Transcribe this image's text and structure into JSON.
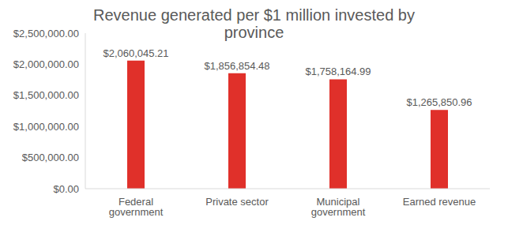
{
  "chart_data": {
    "type": "bar",
    "title": "Revenue generated per $1 million invested by province",
    "categories": [
      "Federal government",
      "Private sector",
      "Municipal government",
      "Earned revenue"
    ],
    "values": [
      2060045.21,
      1856854.48,
      1758164.99,
      1265850.96
    ],
    "value_labels": [
      "$2,060,045.21",
      "$1,856,854.48",
      "$1,758,164.99",
      "$1,265,850.96"
    ],
    "data_labels": true,
    "color": "#e0302a",
    "ylim": [
      0,
      2500000
    ],
    "yticks": [
      {
        "value": 0,
        "label": "$0.00"
      },
      {
        "value": 500000,
        "label": "$500,000.00"
      },
      {
        "value": 1000000,
        "label": "$1,000,000.00"
      },
      {
        "value": 1500000,
        "label": "$1,500,000.00"
      },
      {
        "value": 2000000,
        "label": "$2,000,000.00"
      },
      {
        "value": 2500000,
        "label": "$2,500,000.00"
      }
    ],
    "grid": false
  }
}
